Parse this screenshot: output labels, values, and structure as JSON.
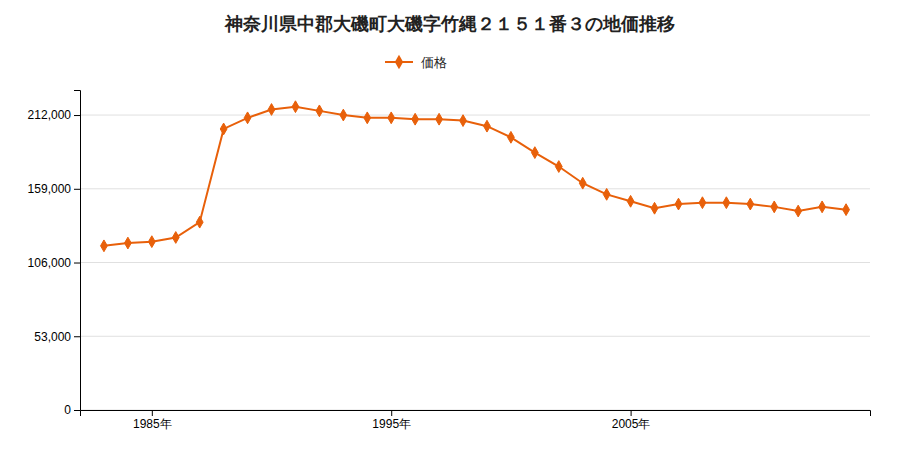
{
  "chart_data": {
    "type": "line",
    "title": "神奈川県中郡大磯町大磯字竹縄２１５１番３の地価推移",
    "x": [
      1983,
      1984,
      1985,
      1986,
      1987,
      1988,
      1989,
      1990,
      1991,
      1992,
      1993,
      1994,
      1995,
      1996,
      1997,
      1998,
      1999,
      2000,
      2001,
      2002,
      2003,
      2004,
      2005,
      2006,
      2007,
      2008,
      2009,
      2010,
      2011,
      2012,
      2013,
      2014
    ],
    "series": [
      {
        "name": "価格",
        "color": "#e8600a",
        "marker": "diamond",
        "values": [
          118000,
          120000,
          121000,
          124000,
          135000,
          202000,
          210000,
          216000,
          218000,
          215000,
          212000,
          210000,
          210000,
          209000,
          209000,
          208000,
          204000,
          196000,
          185000,
          175000,
          163000,
          155000,
          150000,
          145000,
          148000,
          149000,
          149000,
          148000,
          146000,
          143000,
          146000,
          144000
        ]
      }
    ],
    "xlim": [
      1982,
      2015
    ],
    "xticks": [
      {
        "value": 1985,
        "label": "1985年"
      },
      {
        "value": 1995,
        "label": "1995年"
      },
      {
        "value": 2005,
        "label": "2005年"
      }
    ],
    "ylim": [
      0,
      230000
    ],
    "yticks": [
      0,
      {
        "value": 53000,
        "label": "53,000"
      },
      {
        "value": 106000,
        "label": "106,000"
      },
      {
        "value": 159000,
        "label": "159,000"
      },
      {
        "value": 212000,
        "label": "212,000"
      }
    ],
    "grid": true,
    "legend": "top"
  }
}
